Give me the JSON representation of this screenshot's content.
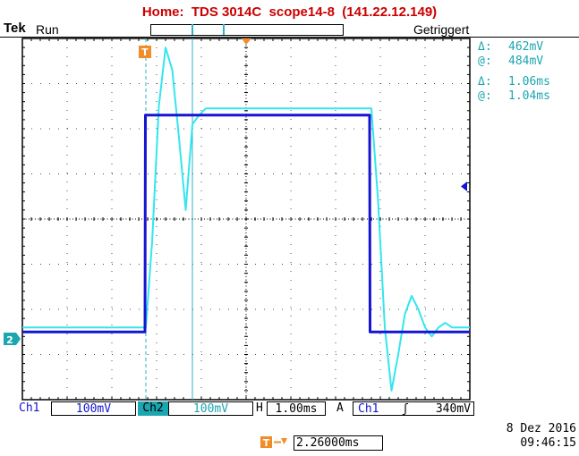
{
  "title": "Home:  TDS 3014C  scope14-8  (141.22.12.149)",
  "header": {
    "brand": "Tek",
    "run_state": "Run",
    "trigger_state": "Getriggert"
  },
  "cursor_readouts": [
    {
      "symbol": "Δ:",
      "value": "462mV"
    },
    {
      "symbol": "@:",
      "value": "484mV"
    },
    {
      "symbol": "Δ:",
      "value": "1.06ms"
    },
    {
      "symbol": "@:",
      "value": "1.04ms"
    }
  ],
  "bottom_bar": {
    "ch1_label": "Ch1",
    "ch1_scale": "100mV",
    "ch2_label": "Ch2",
    "ch2_scale": "100mV",
    "h_label": "H",
    "h_scale": "1.00ms",
    "trigger_mode": "A",
    "trigger_source": "Ch1",
    "trigger_slope": "ʃ",
    "trigger_level": "340mV"
  },
  "markers": {
    "trigger_marker": "T",
    "channel2_marker": "2"
  },
  "timestamp": {
    "date": "8 Dez  2016",
    "time": "09:46:15"
  },
  "delay": {
    "value": "2.26000ms"
  },
  "colors": {
    "ch1": "#1414d2",
    "ch2": "#33e6ef",
    "cursor": "#1ba6b0",
    "marker": "#f28c28",
    "title": "#cc0000"
  },
  "chart_data": {
    "type": "line",
    "xlabel": "",
    "ylabel": "",
    "x_unit": "ms",
    "y_unit": "mV",
    "xlim": [
      0,
      10
    ],
    "ylim": [
      -400,
      400
    ],
    "grid": true,
    "series": [
      {
        "name": "Ch1",
        "x": [
          0,
          2.74,
          2.75,
          7.76,
          7.77,
          10
        ],
        "y": [
          -250,
          -250,
          230,
          230,
          -250,
          -250
        ]
      },
      {
        "name": "Ch2",
        "x": [
          0,
          2.76,
          2.9,
          3.05,
          3.2,
          3.35,
          3.5,
          3.65,
          3.8,
          3.95,
          4.1,
          4.4,
          4.8,
          5.5,
          7.8,
          7.95,
          8.1,
          8.25,
          8.4,
          8.55,
          8.7,
          8.85,
          9.0,
          9.15,
          9.3,
          9.45,
          9.6,
          10
        ],
        "y": [
          -240,
          -240,
          -50,
          250,
          380,
          330,
          180,
          20,
          210,
          230,
          245,
          245,
          245,
          245,
          245,
          40,
          -240,
          -380,
          -300,
          -210,
          -170,
          -200,
          -240,
          -260,
          -240,
          -230,
          -240,
          -240
        ]
      }
    ]
  }
}
